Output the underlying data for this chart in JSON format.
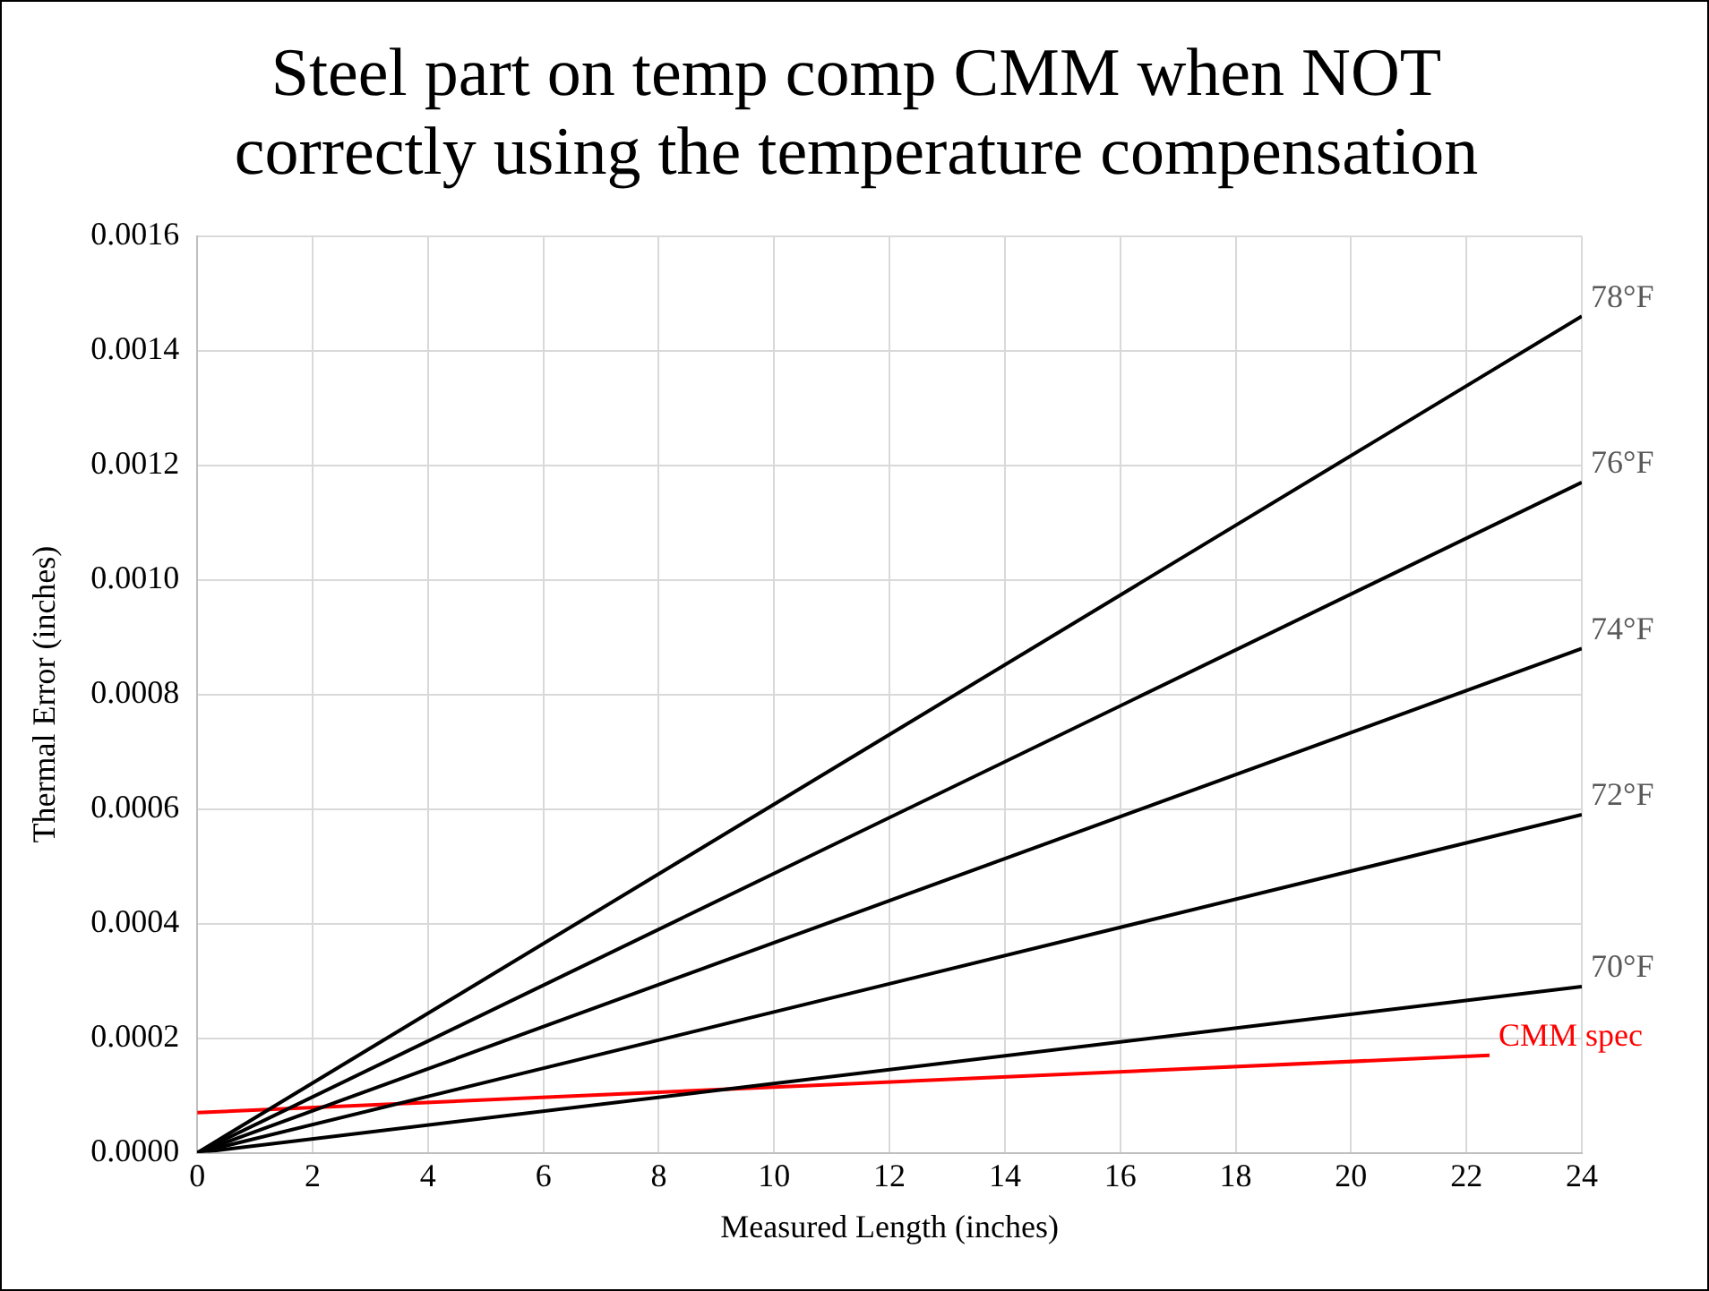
{
  "chart_data": {
    "type": "line",
    "title": "Steel part on temp comp CMM when NOT correctly using the temperature compensation",
    "xlabel": "Measured Length (inches)",
    "ylabel": "Thermal Error (inches)",
    "series": [
      {
        "name": "78°F",
        "color": "#000000",
        "x": [
          0,
          24
        ],
        "values": [
          0,
          0.00146
        ]
      },
      {
        "name": "76°F",
        "color": "#000000",
        "x": [
          0,
          24
        ],
        "values": [
          0,
          0.00117
        ]
      },
      {
        "name": "74°F",
        "color": "#000000",
        "x": [
          0,
          24
        ],
        "values": [
          0,
          0.00088
        ]
      },
      {
        "name": "72°F",
        "color": "#000000",
        "x": [
          0,
          24
        ],
        "values": [
          0,
          0.00059
        ]
      },
      {
        "name": "70°F",
        "color": "#000000",
        "x": [
          0,
          24
        ],
        "values": [
          0,
          0.00029
        ]
      },
      {
        "name": "CMM spec",
        "color": "#ff0000",
        "x": [
          0,
          22.4
        ],
        "values": [
          7e-05,
          0.00017
        ]
      }
    ],
    "xlim": [
      0,
      24
    ],
    "xticks": [
      0,
      2,
      4,
      6,
      8,
      10,
      12,
      14,
      16,
      18,
      20,
      22,
      24
    ],
    "ylim": [
      0,
      0.0016
    ],
    "yticks": [
      {
        "value": 0,
        "label": "0.0000"
      },
      {
        "value": 0.0002,
        "label": "0.0002"
      },
      {
        "value": 0.0004,
        "label": "0.0004"
      },
      {
        "value": 0.0006,
        "label": "0.0006"
      },
      {
        "value": 0.0008,
        "label": "0.0008"
      },
      {
        "value": 0.001,
        "label": "0.0010"
      },
      {
        "value": 0.0012,
        "label": "0.0012"
      },
      {
        "value": 0.0014,
        "label": "0.0014"
      },
      {
        "value": 0.0016,
        "label": "0.0016"
      }
    ],
    "grid": true,
    "legend": false,
    "marker": "none",
    "line_style": "solid"
  }
}
